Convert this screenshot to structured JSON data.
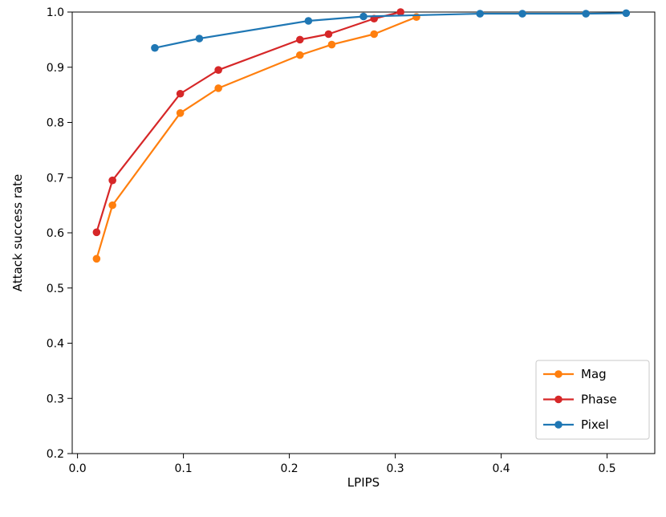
{
  "chart_data": {
    "type": "line",
    "title": "",
    "xlabel": "LPIPS",
    "ylabel": "Attack success rate",
    "xlim": [
      -0.005,
      0.545
    ],
    "ylim": [
      0.2,
      1.0
    ],
    "xticks": [
      0.0,
      0.1,
      0.2,
      0.3,
      0.4,
      0.5
    ],
    "yticks": [
      0.2,
      0.3,
      0.4,
      0.5,
      0.6,
      0.7,
      0.8,
      0.9,
      1.0
    ],
    "grid": false,
    "legend_position": "lower right",
    "series": [
      {
        "name": "Mag",
        "color": "#ff7f0e",
        "x": [
          0.018,
          0.033,
          0.097,
          0.133,
          0.21,
          0.24,
          0.28,
          0.32
        ],
        "y": [
          0.553,
          0.65,
          0.817,
          0.862,
          0.922,
          0.941,
          0.96,
          0.991
        ]
      },
      {
        "name": "Phase",
        "color": "#d62728",
        "x": [
          0.018,
          0.033,
          0.097,
          0.133,
          0.21,
          0.237,
          0.28,
          0.305
        ],
        "y": [
          0.601,
          0.695,
          0.852,
          0.895,
          0.95,
          0.96,
          0.988,
          1.0
        ]
      },
      {
        "name": "Pixel",
        "color": "#1f77b4",
        "x": [
          0.073,
          0.115,
          0.218,
          0.27,
          0.38,
          0.42,
          0.48,
          0.518
        ],
        "y": [
          0.935,
          0.952,
          0.984,
          0.992,
          0.997,
          0.997,
          0.997,
          0.998
        ]
      }
    ]
  }
}
